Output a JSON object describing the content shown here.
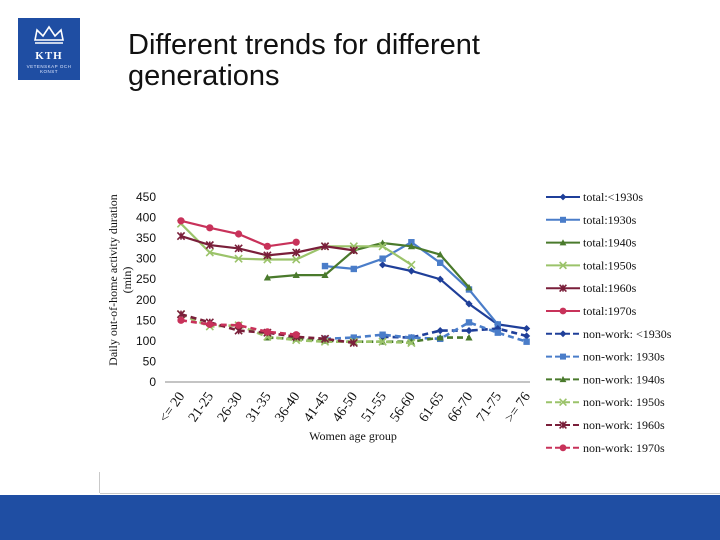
{
  "slide": {
    "title_lines": [
      "Different trends for different",
      "generations"
    ],
    "logo": {
      "text": "KTH",
      "subtext": "VETENSKAP OCH KONST",
      "brand_color": "#1f4ea3"
    }
  },
  "chart_data": {
    "type": "line",
    "title": "",
    "xlabel": "Women age group",
    "ylabel": "Daily out-of-home activity duration (min)",
    "ylim": [
      0,
      450
    ],
    "yticks": [
      "0",
      "50",
      "100",
      "150",
      "200",
      "250",
      "300",
      "350",
      "400",
      "450"
    ],
    "grid": false,
    "legend_position": "right",
    "categories": [
      "<= 20",
      "21-25",
      "26-30",
      "31-35",
      "36-40",
      "41-45",
      "46-50",
      "51-55",
      "56-60",
      "61-65",
      "66-70",
      "71-75",
      ">= 76"
    ],
    "series": [
      {
        "name": "total:<1930s",
        "color": "#1f3f99",
        "marker": "diamond",
        "dashed": false,
        "values": [
          null,
          null,
          null,
          null,
          null,
          null,
          null,
          285,
          270,
          250,
          190,
          140,
          130
        ]
      },
      {
        "name": "total:1930s",
        "color": "#4a7dc9",
        "marker": "square",
        "dashed": false,
        "values": [
          null,
          null,
          null,
          null,
          null,
          282,
          275,
          300,
          340,
          290,
          225,
          140,
          null
        ]
      },
      {
        "name": "total:1940s",
        "color": "#4a7a2c",
        "marker": "triangle",
        "dashed": false,
        "values": [
          null,
          null,
          null,
          254,
          260,
          260,
          320,
          338,
          330,
          310,
          230,
          null,
          null
        ]
      },
      {
        "name": "total:1950s",
        "color": "#9bc36a",
        "marker": "x",
        "dashed": false,
        "values": [
          385,
          315,
          300,
          298,
          298,
          330,
          330,
          330,
          285,
          null,
          null,
          null,
          null
        ]
      },
      {
        "name": "total:1960s",
        "color": "#7a1f3a",
        "marker": "star",
        "dashed": false,
        "values": [
          355,
          333,
          325,
          308,
          315,
          330,
          320,
          null,
          null,
          null,
          null,
          null,
          null
        ]
      },
      {
        "name": "total:1970s",
        "color": "#c8325a",
        "marker": "circle",
        "dashed": false,
        "values": [
          392,
          375,
          360,
          330,
          340,
          null,
          null,
          null,
          null,
          null,
          null,
          null,
          null
        ]
      },
      {
        "name": "non-work: <1930s",
        "color": "#1f3f99",
        "marker": "diamond",
        "dashed": true,
        "values": [
          null,
          null,
          null,
          null,
          null,
          null,
          null,
          110,
          108,
          125,
          125,
          130,
          112
        ]
      },
      {
        "name": "non-work: 1930s",
        "color": "#4a7dc9",
        "marker": "square",
        "dashed": true,
        "values": [
          null,
          null,
          null,
          null,
          null,
          105,
          108,
          115,
          108,
          105,
          145,
          120,
          98
        ]
      },
      {
        "name": "non-work: 1940s",
        "color": "#4a7a2c",
        "marker": "triangle",
        "dashed": true,
        "values": [
          null,
          null,
          null,
          108,
          105,
          100,
          98,
          98,
          98,
          108,
          108,
          null,
          null
        ]
      },
      {
        "name": "non-work: 1950s",
        "color": "#9bc36a",
        "marker": "x",
        "dashed": true,
        "values": [
          165,
          135,
          138,
          110,
          102,
          98,
          98,
          98,
          95,
          null,
          null,
          null,
          null
        ]
      },
      {
        "name": "non-work: 1960s",
        "color": "#7a1f3a",
        "marker": "star",
        "dashed": true,
        "values": [
          165,
          145,
          125,
          120,
          110,
          105,
          95,
          null,
          null,
          null,
          null,
          null,
          null
        ]
      },
      {
        "name": "non-work: 1970s",
        "color": "#c8325a",
        "marker": "circle",
        "dashed": true,
        "values": [
          150,
          140,
          138,
          122,
          115,
          null,
          null,
          null,
          null,
          null,
          null,
          null,
          null
        ]
      }
    ]
  }
}
